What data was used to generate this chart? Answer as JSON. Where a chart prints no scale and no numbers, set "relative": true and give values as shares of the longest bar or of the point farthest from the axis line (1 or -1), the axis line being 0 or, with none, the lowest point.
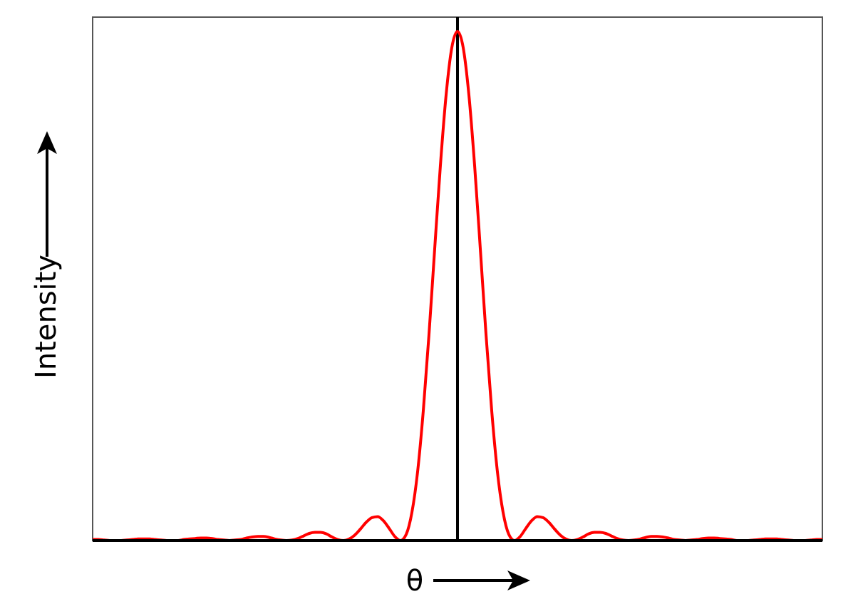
{
  "chart_data": {
    "type": "line",
    "xlabel": "θ",
    "ylabel": "Intensity",
    "relative": true,
    "line_style": "solid",
    "categories": [
      null,
      null,
      null,
      null,
      null,
      null,
      null,
      null,
      null,
      null,
      null,
      null,
      null,
      null,
      null,
      null,
      null,
      null,
      null,
      null,
      null,
      null,
      null,
      null,
      null,
      null,
      null,
      null,
      null,
      null,
      null,
      null,
      null,
      null,
      null,
      null,
      null,
      null,
      null,
      null,
      null,
      null,
      null,
      null,
      null,
      null,
      null,
      null,
      null,
      null,
      null,
      null,
      null,
      null,
      null,
      null,
      null,
      null,
      null,
      null,
      null,
      null,
      null,
      null,
      null,
      null,
      null,
      null,
      null,
      null,
      null,
      null,
      null,
      null,
      null,
      null,
      null,
      null,
      null,
      null,
      null,
      null,
      null,
      null,
      null,
      null,
      null,
      null,
      null,
      null,
      null,
      null,
      null,
      null,
      null,
      null,
      null,
      null,
      null,
      null,
      null,
      null,
      null,
      null,
      null,
      null,
      null,
      null,
      null,
      null,
      null,
      null,
      null,
      null,
      null,
      null,
      null,
      null,
      null,
      null,
      null,
      null,
      null,
      null,
      null,
      null,
      null,
      null,
      null
    ],
    "series": [
      {
        "color": "#ff0000",
        "values": [
          0.002,
          0.002,
          0.001,
          0,
          0,
          0,
          0.001,
          0.002,
          0.003,
          0.003,
          0.003,
          0.002,
          0.001,
          0,
          0,
          0,
          0.002,
          0.003,
          0.004,
          0.005,
          0.005,
          0.004,
          0.002,
          0.001,
          0,
          0.001,
          0.002,
          0.005,
          0.007,
          0.008,
          0.008,
          0.006,
          0.003,
          0.001,
          0,
          0.001,
          0.004,
          0.009,
          0.014,
          0.016,
          0.016,
          0.013,
          0.007,
          0.002,
          0,
          0.003,
          0.011,
          0.023,
          0.036,
          0.045,
          0.047,
          0.039,
          0.024,
          0.008,
          0,
          0.012,
          0.055,
          0.135,
          0.255,
          0.405,
          0.573,
          0.737,
          0.875,
          0.968,
          1,
          0.968,
          0.875,
          0.737,
          0.573,
          0.405,
          0.255,
          0.135,
          0.055,
          0.012,
          0,
          0.008,
          0.024,
          0.039,
          0.047,
          0.045,
          0.036,
          0.023,
          0.011,
          0.003,
          0,
          0.002,
          0.007,
          0.013,
          0.016,
          0.016,
          0.014,
          0.009,
          0.004,
          0.001,
          0,
          0.001,
          0.003,
          0.006,
          0.008,
          0.008,
          0.007,
          0.005,
          0.002,
          0.001,
          0,
          0.001,
          0.002,
          0.004,
          0.005,
          0.005,
          0.004,
          0.003,
          0.002,
          0,
          0,
          0,
          0.001,
          0.002,
          0.003,
          0.003,
          0.003,
          0.002,
          0.001,
          0,
          0,
          0,
          0.001,
          0.002,
          0.002
        ]
      }
    ]
  }
}
